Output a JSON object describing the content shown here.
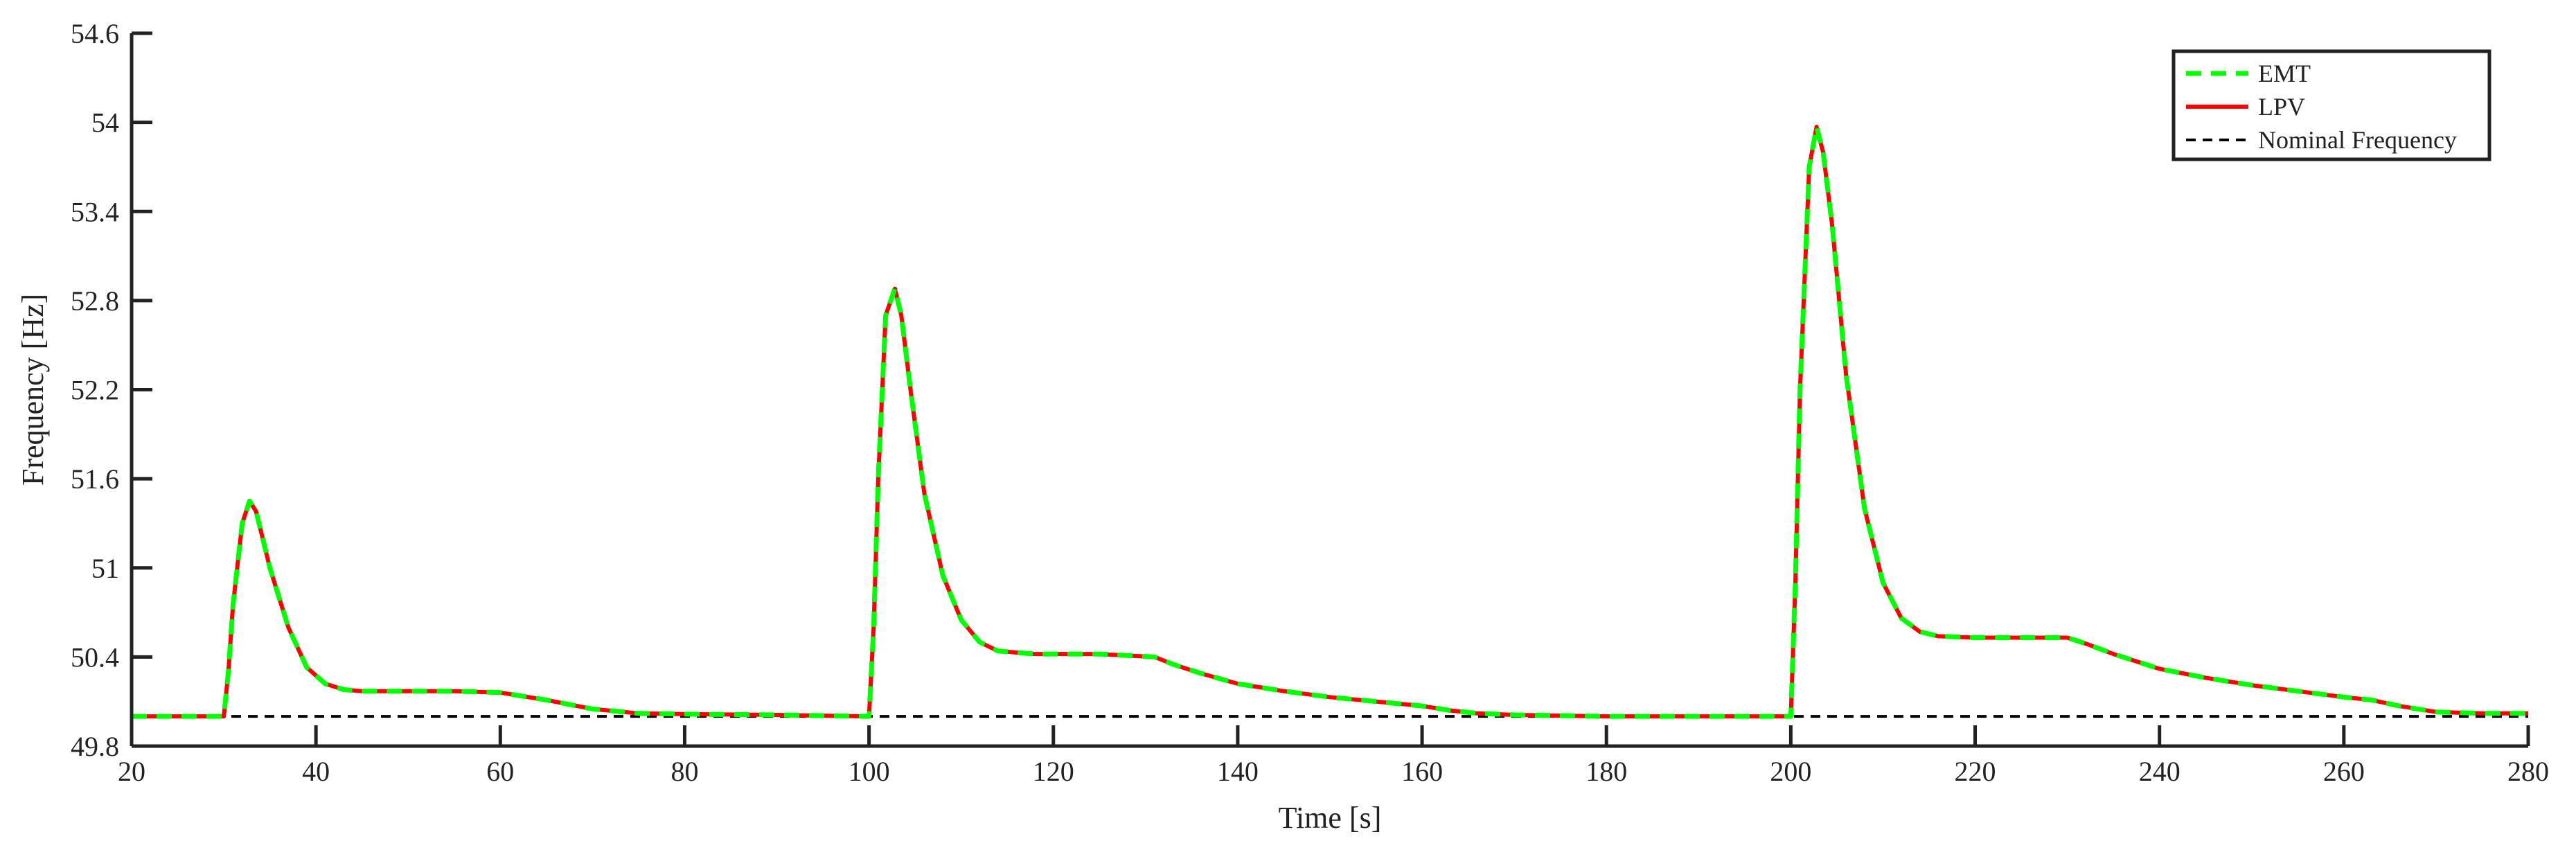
{
  "chart_data": {
    "type": "line",
    "title": "",
    "xlabel": "Time [s]",
    "ylabel": "Frequency [Hz]",
    "xlim": [
      20,
      280
    ],
    "ylim": [
      49.8,
      54.6
    ],
    "xticks": [
      20,
      40,
      60,
      80,
      100,
      120,
      140,
      160,
      180,
      200,
      220,
      240,
      260,
      280
    ],
    "yticks": [
      49.8,
      50.4,
      51,
      51.6,
      52.2,
      52.8,
      53.4,
      54,
      54.6
    ],
    "x_tick_labels": [
      "20",
      "40",
      "60",
      "80",
      "100",
      "120",
      "140",
      "160",
      "180",
      "200",
      "220",
      "240",
      "260",
      "280"
    ],
    "y_tick_labels": [
      "49.8",
      "50.4",
      "51",
      "51.6",
      "52.2",
      "52.8",
      "53.4",
      "54",
      "54.6"
    ],
    "grid": false,
    "legend_position": "top-right",
    "series": [
      {
        "name": "EMT",
        "color": "#00ff00",
        "style": "dashed",
        "x": [
          20,
          30,
          30.5,
          31,
          32,
          32.8,
          33.5,
          35,
          37,
          39,
          41,
          43,
          45,
          50,
          55,
          60,
          62,
          65,
          70,
          75,
          80,
          90,
          100,
          100.5,
          101,
          101.8,
          102.8,
          103.5,
          104.5,
          106,
          108,
          110,
          112,
          114,
          118,
          125,
          131,
          133,
          136,
          140,
          145,
          150,
          155,
          160,
          163,
          166,
          170,
          180,
          200,
          200.5,
          201,
          202,
          202.8,
          203.5,
          204.5,
          206,
          208,
          210,
          212,
          214,
          216,
          220,
          225,
          230,
          232,
          235,
          240,
          245,
          250,
          255,
          260,
          263,
          266,
          270,
          275,
          280
        ],
        "y": [
          50.0,
          50.0,
          50.3,
          50.75,
          51.3,
          51.45,
          51.38,
          51.0,
          50.6,
          50.33,
          50.22,
          50.18,
          50.17,
          50.17,
          50.17,
          50.16,
          50.14,
          50.11,
          50.05,
          50.02,
          50.015,
          50.01,
          50.0,
          50.6,
          51.6,
          52.7,
          52.88,
          52.7,
          52.2,
          51.5,
          50.95,
          50.65,
          50.5,
          50.44,
          50.42,
          50.42,
          50.4,
          50.35,
          50.29,
          50.22,
          50.17,
          50.13,
          50.1,
          50.07,
          50.04,
          50.02,
          50.01,
          50.0,
          50.0,
          50.9,
          52.2,
          53.7,
          53.97,
          53.8,
          53.3,
          52.3,
          51.4,
          50.9,
          50.66,
          50.57,
          50.54,
          50.53,
          50.53,
          50.53,
          50.49,
          50.42,
          50.32,
          50.26,
          50.21,
          50.17,
          50.13,
          50.11,
          50.07,
          50.03,
          50.02,
          50.02
        ]
      },
      {
        "name": "LPV",
        "color": "#ff0000",
        "style": "solid",
        "x": [
          20,
          30,
          30.5,
          31,
          32,
          32.8,
          33.5,
          35,
          37,
          39,
          41,
          43,
          45,
          50,
          55,
          60,
          62,
          65,
          70,
          75,
          80,
          90,
          100,
          100.5,
          101,
          101.8,
          102.8,
          103.5,
          104.5,
          106,
          108,
          110,
          112,
          114,
          118,
          125,
          131,
          133,
          136,
          140,
          145,
          150,
          155,
          160,
          163,
          166,
          170,
          180,
          200,
          200.5,
          201,
          202,
          202.8,
          203.5,
          204.5,
          206,
          208,
          210,
          212,
          214,
          216,
          220,
          225,
          230,
          232,
          235,
          240,
          245,
          250,
          255,
          260,
          263,
          266,
          270,
          275,
          280
        ],
        "y": [
          50.0,
          50.0,
          50.3,
          50.75,
          51.3,
          51.45,
          51.38,
          51.0,
          50.6,
          50.33,
          50.22,
          50.18,
          50.17,
          50.17,
          50.17,
          50.16,
          50.14,
          50.11,
          50.05,
          50.02,
          50.015,
          50.01,
          50.0,
          50.6,
          51.6,
          52.7,
          52.88,
          52.7,
          52.2,
          51.5,
          50.95,
          50.65,
          50.5,
          50.44,
          50.42,
          50.42,
          50.4,
          50.35,
          50.29,
          50.22,
          50.17,
          50.13,
          50.1,
          50.07,
          50.04,
          50.02,
          50.01,
          50.0,
          50.0,
          50.9,
          52.2,
          53.7,
          53.97,
          53.8,
          53.3,
          52.3,
          51.4,
          50.9,
          50.66,
          50.57,
          50.54,
          50.53,
          50.53,
          50.53,
          50.49,
          50.42,
          50.32,
          50.26,
          50.21,
          50.17,
          50.13,
          50.11,
          50.07,
          50.03,
          50.02,
          50.02
        ]
      },
      {
        "name": "Nominal Frequency",
        "color": "#000000",
        "style": "dotted",
        "x": [
          20,
          280
        ],
        "y": [
          50,
          50
        ]
      }
    ]
  }
}
